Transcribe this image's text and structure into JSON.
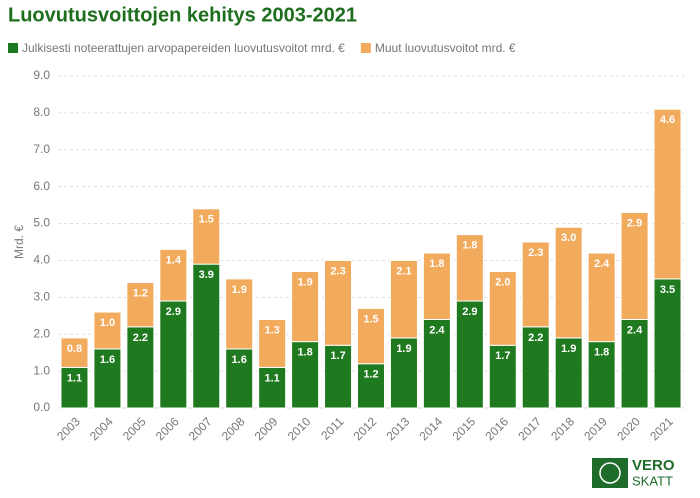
{
  "chart_data": {
    "type": "stacked_bar",
    "title": "Luovutusvoittojen kehitys 2003-2021",
    "y_label": "Mrd. €",
    "categories": [
      "2003",
      "2004",
      "2005",
      "2006",
      "2007",
      "2008",
      "2009",
      "2010",
      "2011",
      "2012",
      "2013",
      "2014",
      "2015",
      "2016",
      "2017",
      "2018",
      "2019",
      "2020",
      "2021"
    ],
    "series": [
      {
        "name": "Julkisesti noteerattujen arvopapereiden luovutusvoitot mrd. €",
        "color": "#1f7a1f",
        "values": [
          1.1,
          1.6,
          2.2,
          2.9,
          3.9,
          1.6,
          1.1,
          1.8,
          1.7,
          1.2,
          1.9,
          2.4,
          2.9,
          1.7,
          2.2,
          1.9,
          1.8,
          2.4,
          3.5
        ]
      },
      {
        "name": "Muut luovutusvoitot mrd. €",
        "color": "#f2aa5c",
        "values": [
          0.8,
          1.0,
          1.2,
          1.4,
          1.5,
          1.9,
          1.3,
          1.9,
          2.3,
          1.5,
          2.1,
          1.8,
          1.8,
          2.0,
          2.3,
          3.0,
          2.4,
          2.9,
          4.6
        ],
        "value_labels": [
          "0.8",
          "1.0",
          "1.2",
          "1.4",
          "1.5",
          "1.9",
          "1.3",
          "1.9",
          "2.3",
          "1.5",
          "2.1",
          "1.8",
          "1.8",
          "2.0",
          "2.3",
          "3.0",
          "2.4",
          "2.9",
          "4.6"
        ]
      }
    ],
    "ylim": [
      0,
      9
    ],
    "yticks": [
      {
        "value": 0,
        "label": "0.0"
      },
      {
        "value": 1,
        "label": "1.0"
      },
      {
        "value": 2,
        "label": "2.0"
      },
      {
        "value": 3,
        "label": "3.0"
      },
      {
        "value": 4,
        "label": "4.0"
      },
      {
        "value": 5,
        "label": "5.0"
      },
      {
        "value": 6,
        "label": "6.0"
      },
      {
        "value": 7,
        "label": "7.0"
      },
      {
        "value": 8,
        "label": "8.0"
      },
      {
        "value": 9,
        "label": "9.0"
      }
    ],
    "grid": true,
    "legend": "top"
  },
  "logo": {
    "line1": "VERO",
    "line2": "SKATT"
  }
}
